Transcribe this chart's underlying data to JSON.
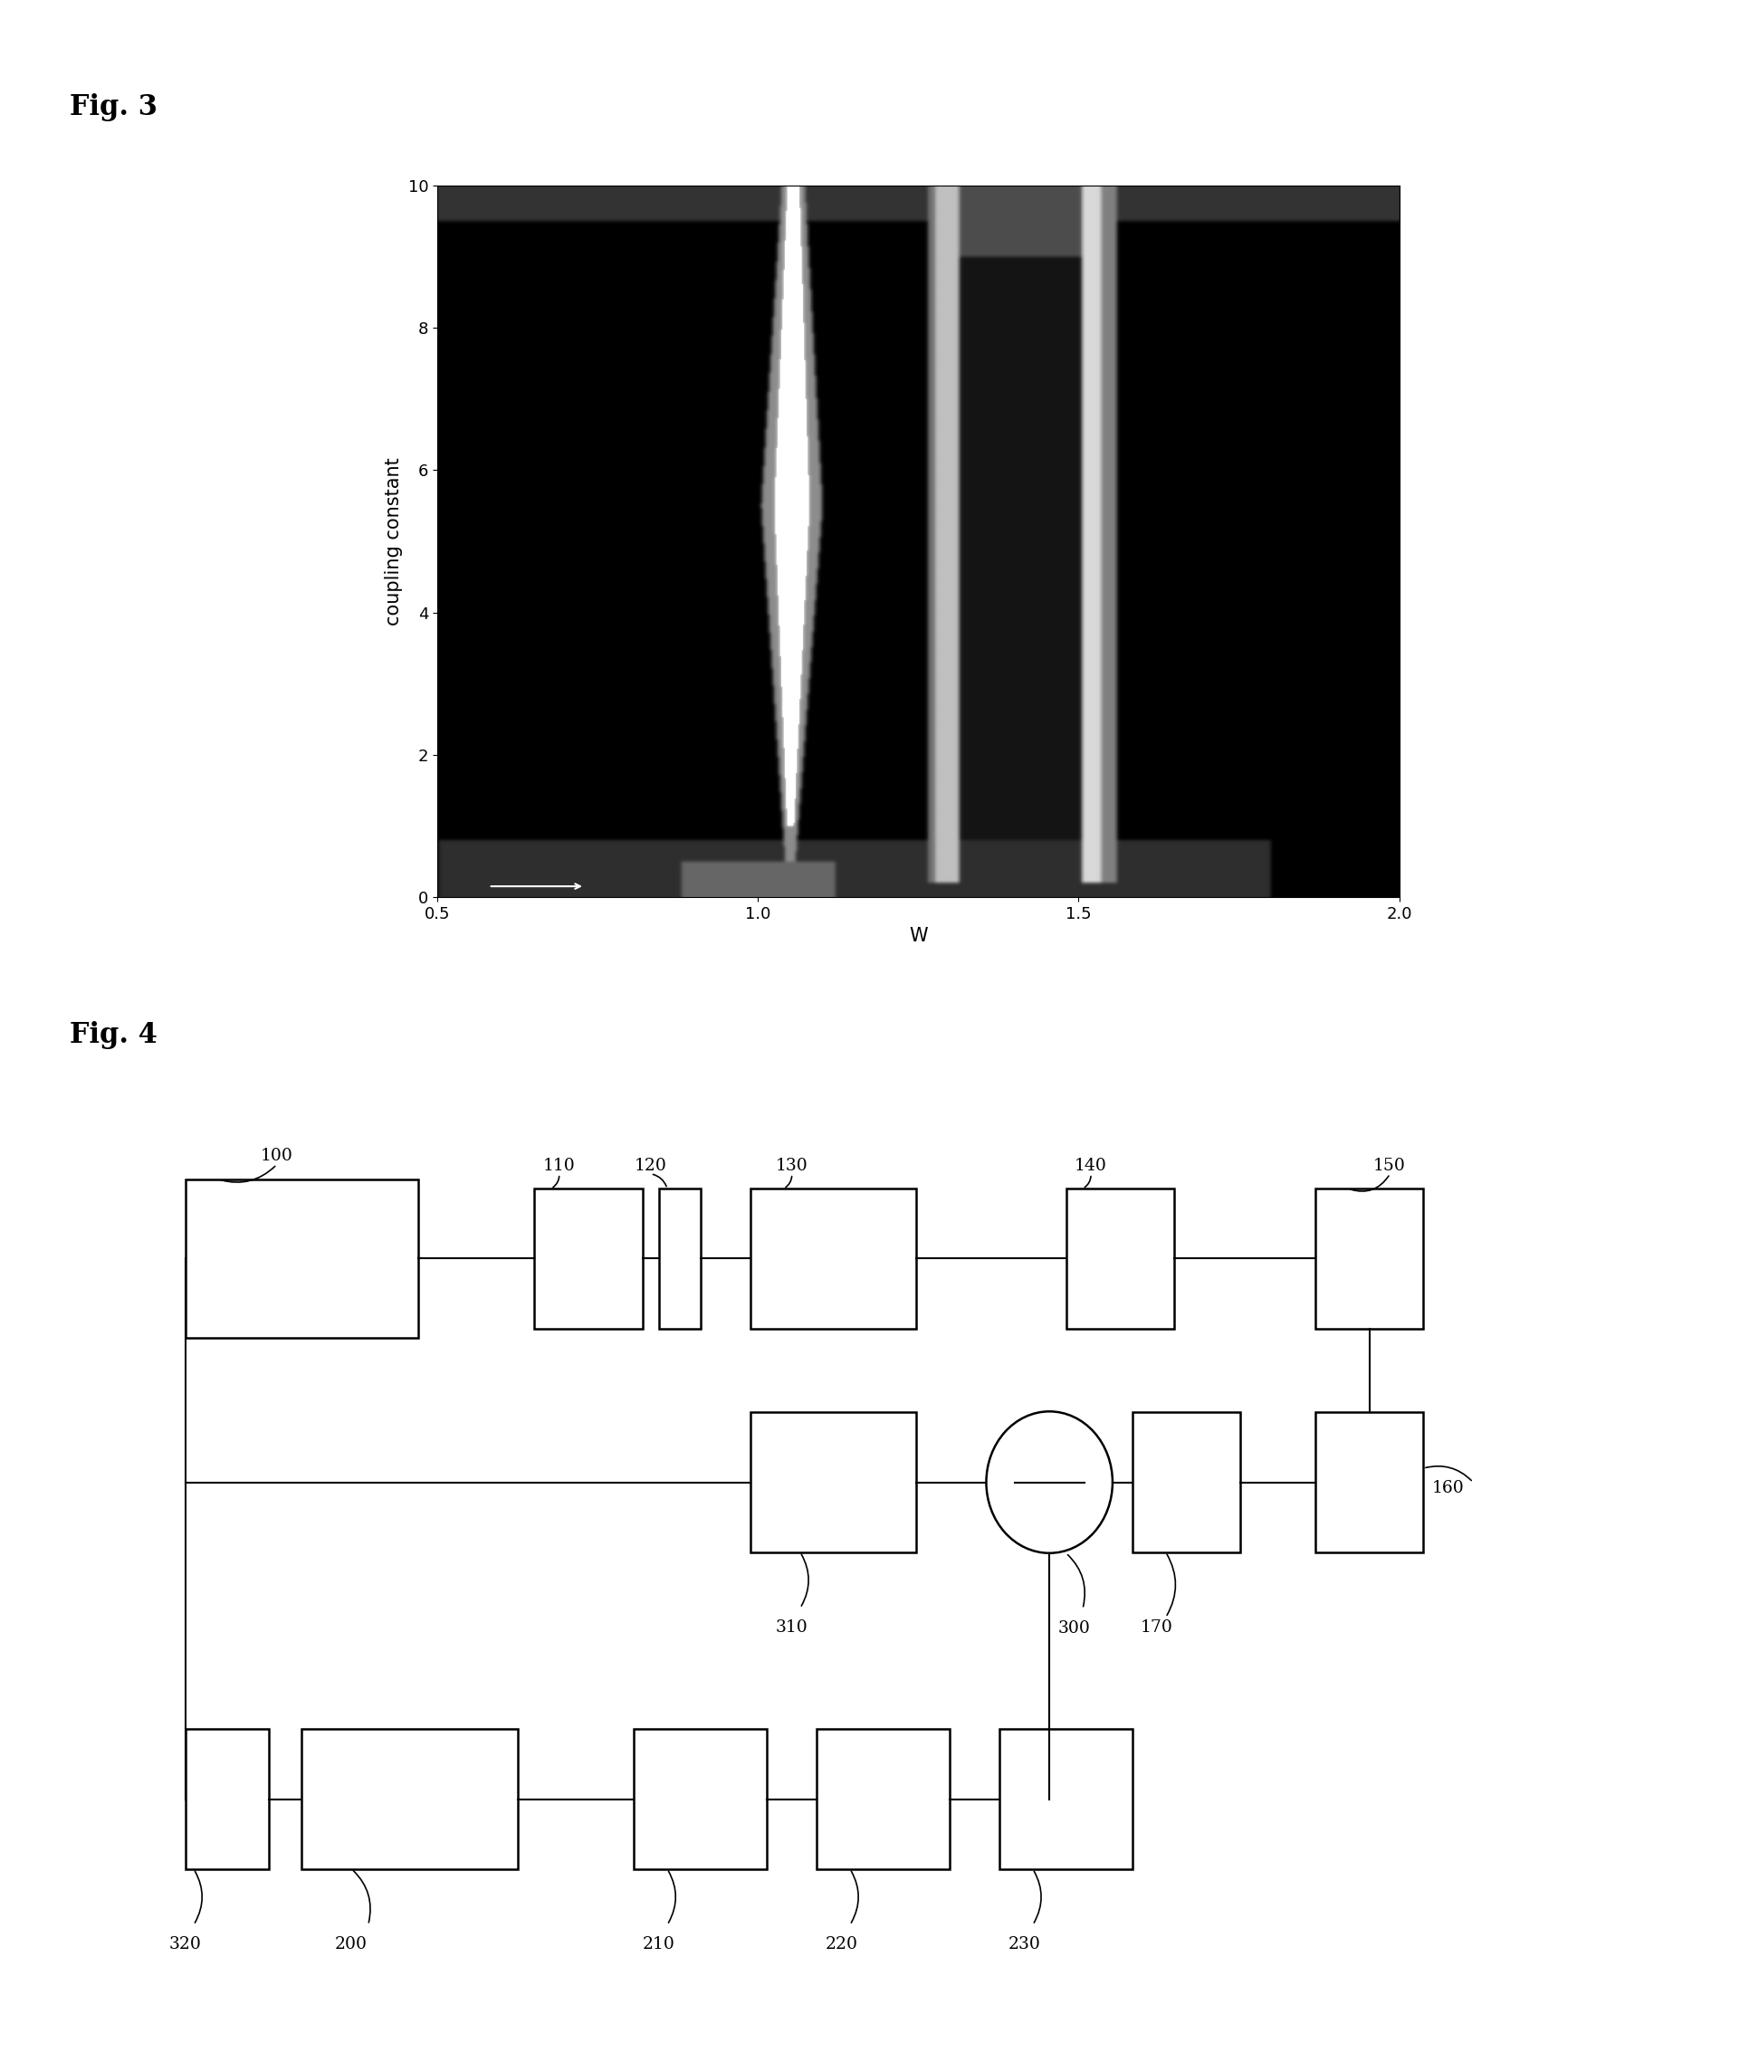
{
  "fig3_label": "Fig. 3",
  "fig4_label": "Fig. 4",
  "fig3_xlabel": "W",
  "fig3_ylabel": "coupling constant",
  "fig3_xlim": [
    0.5,
    2.0
  ],
  "fig3_ylim": [
    0,
    10
  ],
  "fig3_xticks": [
    0.5,
    1.0,
    1.5,
    2.0
  ],
  "fig3_yticks": [
    0,
    2,
    4,
    6,
    8,
    10
  ],
  "background_color": "#ffffff",
  "label_fontsize": 15,
  "fig_label_fontsize": 22,
  "tick_fontsize": 13
}
